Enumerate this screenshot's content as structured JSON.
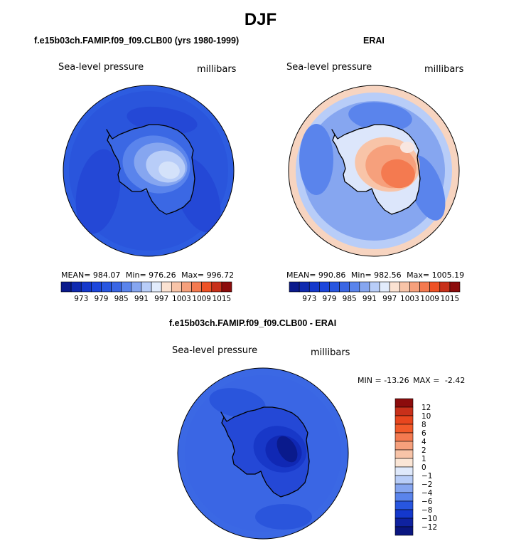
{
  "main_title": "DJF",
  "panels": [
    {
      "title": "f.e15b03ch.FAMIP.f09_f09.CLB00 (yrs 1980-1999)",
      "variable": "Sea-level pressure",
      "units": "millibars",
      "stats": {
        "mean_label": "MEAN=",
        "mean": "984.07",
        "min_label": "Min=",
        "min": "976.26",
        "max_label": "Max=",
        "max": "996.72"
      }
    },
    {
      "title": "ERAI",
      "variable": "Sea-level pressure",
      "units": "millibars",
      "stats": {
        "mean_label": "MEAN=",
        "mean": "990.86",
        "min_label": "Min=",
        "min": "982.56",
        "max_label": "Max=",
        "max": "1005.19"
      }
    },
    {
      "title": "f.e15b03ch.FAMIP.f09_f09.CLB00 - ERAI",
      "variable": "Sea-level pressure",
      "units": "millibars",
      "stats": {
        "min_label": "MIN =",
        "min": "-13.26",
        "max_label": "MAX =",
        "max": "-2.42"
      }
    }
  ],
  "chart_data": [
    {
      "type": "heatmap",
      "projection": "south-polar stereographic",
      "title": "f.e15b03ch.FAMIP.f09_f09.CLB00 (yrs 1980-1999)",
      "variable": "Sea-level pressure",
      "units": "millibars",
      "mean": 984.07,
      "min": 976.26,
      "max": 996.72,
      "colorbar": {
        "orientation": "horizontal",
        "levels": [
          970,
          973,
          976,
          979,
          982,
          985,
          988,
          991,
          994,
          997,
          1000,
          1003,
          1006,
          1009,
          1012,
          1015
        ],
        "tick_labels": [
          "973",
          "979",
          "985",
          "991",
          "997",
          "1003",
          "1009",
          "1015"
        ],
        "colors": [
          "#0a1a8c",
          "#0f2ab0",
          "#1438cc",
          "#1c46dc",
          "#2856e0",
          "#3a66e4",
          "#5a84ec",
          "#86a6f0",
          "#b8cdf8",
          "#e2ecfc",
          "#fbe2d2",
          "#f8c4a8",
          "#f6a07c",
          "#f47a50",
          "#ee5226",
          "#c8301a",
          "#8c0c0c"
        ]
      }
    },
    {
      "type": "heatmap",
      "projection": "south-polar stereographic",
      "title": "ERAI",
      "variable": "Sea-level pressure",
      "units": "millibars",
      "mean": 990.86,
      "min": 982.56,
      "max": 1005.19,
      "colorbar": {
        "orientation": "horizontal",
        "levels": [
          970,
          973,
          976,
          979,
          982,
          985,
          988,
          991,
          994,
          997,
          1000,
          1003,
          1006,
          1009,
          1012,
          1015
        ],
        "tick_labels": [
          "973",
          "979",
          "985",
          "991",
          "997",
          "1003",
          "1009",
          "1015"
        ],
        "colors": [
          "#0a1a8c",
          "#0f2ab0",
          "#1438cc",
          "#1c46dc",
          "#2856e0",
          "#3a66e4",
          "#5a84ec",
          "#86a6f0",
          "#b8cdf8",
          "#e2ecfc",
          "#fbe2d2",
          "#f8c4a8",
          "#f6a07c",
          "#f47a50",
          "#ee5226",
          "#c8301a",
          "#8c0c0c"
        ]
      }
    },
    {
      "type": "heatmap",
      "projection": "south-polar stereographic",
      "title": "f.e15b03ch.FAMIP.f09_f09.CLB00 - ERAI",
      "variable": "Sea-level pressure",
      "units": "millibars",
      "min": -13.26,
      "max": -2.42,
      "colorbar": {
        "orientation": "vertical",
        "levels": [
          -12,
          -10,
          -8,
          -6,
          -4,
          -2,
          -1,
          0,
          1,
          2,
          4,
          6,
          8,
          10,
          12
        ],
        "tick_labels": [
          "12",
          "10",
          "8",
          "6",
          "4",
          "2",
          "1",
          "0",
          "−1",
          "−2",
          "−4",
          "−6",
          "−8",
          "−10",
          "−12"
        ],
        "colors_top_to_bottom": [
          "#8c0c0c",
          "#c8301a",
          "#e8461e",
          "#f25a2a",
          "#f47a50",
          "#f6a07c",
          "#f8c4a8",
          "#fbe6d6",
          "#dfe9fb",
          "#b8cdf8",
          "#86a6f0",
          "#5a84ec",
          "#2856e0",
          "#1438cc",
          "#0f22a0",
          "#0a1680"
        ]
      }
    }
  ]
}
